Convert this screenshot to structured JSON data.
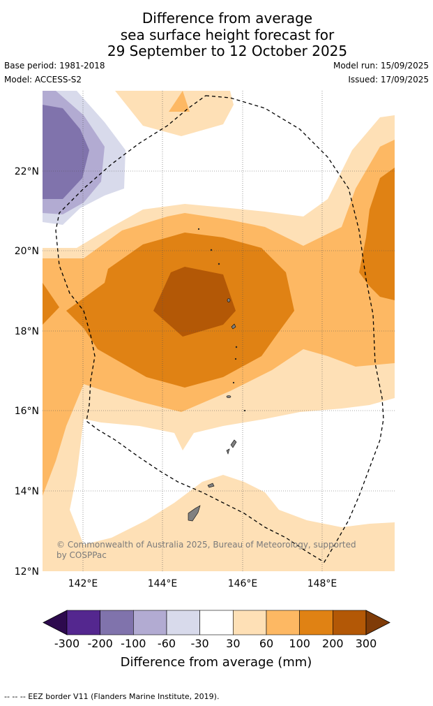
{
  "title": {
    "line1": "Difference from average",
    "line2": "sea surface height forecast for",
    "line3": "29 September to 12 October 2025"
  },
  "meta": {
    "base_period": "Base period: 1981-2018",
    "model": "Model: ACCESS-S2",
    "model_run": "Model run: 15/09/2025",
    "issued": "Issued: 17/09/2025"
  },
  "map": {
    "lon_ticks": [
      "142°E",
      "144°E",
      "146°E",
      "148°E"
    ],
    "lat_ticks": [
      "22°N",
      "20°N",
      "18°N",
      "16°N",
      "14°N",
      "12°N"
    ],
    "credit_line1": "© Commonwealth of Australia 2025, Bureau of Meteorology, supported",
    "credit_line2": "by COSPPac",
    "eez_style": "dashed",
    "land_color": "#808080"
  },
  "colorbar": {
    "ticks": [
      "-300",
      "-200",
      "-100",
      "-60",
      "-30",
      "30",
      "60",
      "100",
      "200",
      "300"
    ],
    "title": "Difference from average (mm)",
    "colors": {
      "below_-300": "#2d0a4e",
      "-300_to_-200": "#54278f",
      "-200_to_-100": "#8073ac",
      "-100_to_-60": "#b2abd2",
      "-60_to_-30": "#d8daeb",
      "-30_to_30": "#ffffff",
      "30_to_60": "#fee0b6",
      "60_to_100": "#fdb863",
      "100_to_200": "#e08214",
      "200_to_300": "#b35806",
      "above_300": "#7f3b08"
    }
  },
  "footer": {
    "legend": "--  --  -- EEZ border V11 (Flanders Marine Institute, 2019)."
  }
}
